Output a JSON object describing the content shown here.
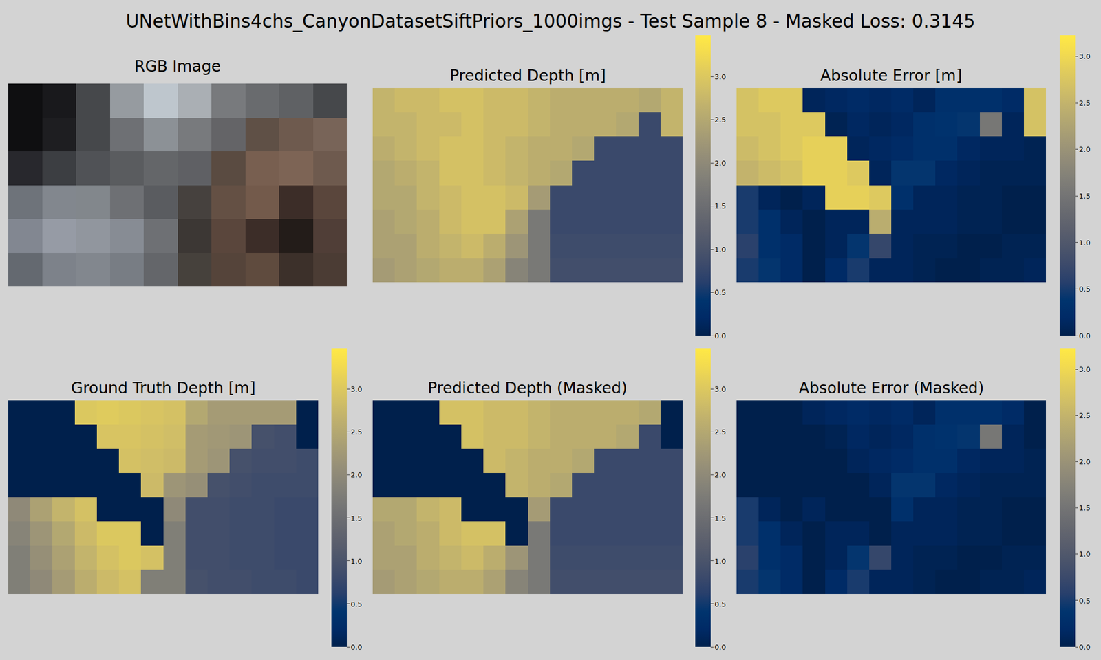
{
  "title": "UNetWithBins4chs_CanyonDatasetSiftPriors_1000imgs - Test Sample 8 - Masked Loss: 0.3145",
  "chart_data": [
    {
      "type": "image",
      "title": "RGB Image",
      "tick_labels": false,
      "pixels": [
        [
          [
            15,
            15,
            17
          ],
          [
            25,
            25,
            28
          ],
          [
            70,
            72,
            75
          ],
          [
            150,
            155,
            160
          ],
          [
            190,
            198,
            205
          ],
          [
            170,
            175,
            180
          ],
          [
            120,
            122,
            125
          ],
          [
            105,
            107,
            110
          ],
          [
            95,
            97,
            100
          ],
          [
            70,
            72,
            75
          ]
        ],
        [
          [
            15,
            15,
            17
          ],
          [
            30,
            30,
            33
          ],
          [
            70,
            72,
            75
          ],
          [
            110,
            112,
            116
          ],
          [
            140,
            145,
            150
          ],
          [
            120,
            122,
            125
          ],
          [
            100,
            100,
            103
          ],
          [
            95,
            80,
            70
          ],
          [
            110,
            90,
            78
          ],
          [
            120,
            100,
            88
          ]
        ],
        [
          [
            40,
            40,
            45
          ],
          [
            60,
            62,
            66
          ],
          [
            80,
            82,
            86
          ],
          [
            90,
            92,
            95
          ],
          [
            100,
            102,
            105
          ],
          [
            95,
            96,
            100
          ],
          [
            90,
            75,
            65
          ],
          [
            120,
            95,
            80
          ],
          [
            125,
            100,
            85
          ],
          [
            110,
            90,
            78
          ]
        ],
        [
          [
            110,
            115,
            122
          ],
          [
            130,
            135,
            142
          ],
          [
            130,
            135,
            140
          ],
          [
            110,
            112,
            116
          ],
          [
            90,
            92,
            96
          ],
          [
            70,
            65,
            62
          ],
          [
            100,
            80,
            68
          ],
          [
            115,
            90,
            75
          ],
          [
            60,
            45,
            40
          ],
          [
            90,
            70,
            60
          ]
        ],
        [
          [
            130,
            135,
            145
          ],
          [
            150,
            155,
            165
          ],
          [
            145,
            150,
            158
          ],
          [
            135,
            140,
            148
          ],
          [
            110,
            112,
            116
          ],
          [
            60,
            55,
            52
          ],
          [
            90,
            70,
            60
          ],
          [
            60,
            45,
            40
          ],
          [
            35,
            28,
            25
          ],
          [
            80,
            62,
            55
          ]
        ],
        [
          [
            100,
            105,
            112
          ],
          [
            125,
            130,
            138
          ],
          [
            130,
            135,
            142
          ],
          [
            120,
            125,
            132
          ],
          [
            100,
            102,
            106
          ],
          [
            70,
            65,
            60
          ],
          [
            85,
            68,
            58
          ],
          [
            95,
            75,
            62
          ],
          [
            60,
            48,
            42
          ],
          [
            75,
            60,
            52
          ]
        ]
      ]
    },
    {
      "type": "heatmap",
      "title": "Predicted Depth [m]",
      "tick_labels": false,
      "zlim": [
        0,
        3.48
      ],
      "zticks": [
        {
          "value": 0,
          "label": "0.0"
        },
        0.5,
        {
          "value": 1,
          "label": "1.0"
        },
        1.5,
        {
          "value": 2,
          "label": "2.0"
        },
        2.5,
        {
          "value": 3,
          "label": "3.0"
        }
      ],
      "z": [
        [
          2.7,
          2.8,
          2.8,
          2.9,
          2.9,
          2.8,
          2.8,
          2.7,
          2.6,
          2.6,
          2.6,
          2.6,
          2.5,
          2.7
        ],
        [
          2.7,
          2.7,
          2.8,
          2.8,
          2.9,
          2.8,
          2.8,
          2.7,
          2.6,
          2.6,
          2.6,
          2.5,
          0.8,
          2.7
        ],
        [
          2.6,
          2.7,
          2.8,
          2.9,
          2.9,
          2.8,
          2.7,
          2.6,
          2.6,
          2.5,
          0.8,
          0.8,
          0.8,
          0.8
        ],
        [
          2.5,
          2.6,
          2.7,
          2.9,
          2.9,
          2.8,
          2.7,
          2.6,
          2.5,
          0.8,
          0.8,
          0.8,
          0.8,
          0.8
        ],
        [
          2.5,
          2.5,
          2.7,
          2.8,
          2.9,
          2.9,
          2.8,
          2.3,
          0.8,
          0.8,
          0.8,
          0.8,
          0.8,
          0.8
        ],
        [
          2.4,
          2.5,
          2.6,
          2.8,
          2.9,
          2.9,
          2.4,
          1.7,
          0.8,
          0.8,
          0.8,
          0.8,
          0.8,
          0.8
        ],
        [
          2.4,
          2.4,
          2.6,
          2.7,
          2.8,
          2.6,
          2.2,
          1.7,
          0.85,
          0.85,
          0.85,
          0.85,
          0.85,
          0.85
        ],
        [
          2.3,
          2.4,
          2.5,
          2.6,
          2.6,
          2.4,
          1.9,
          1.7,
          0.9,
          0.9,
          0.9,
          0.9,
          0.9,
          0.9
        ]
      ]
    },
    {
      "type": "heatmap",
      "title": "Absolute Error [m]",
      "tick_labels": false,
      "zlim": [
        0,
        3.23
      ],
      "zticks": [
        {
          "value": 0,
          "label": "0.0"
        },
        0.5,
        {
          "value": 1,
          "label": "1.0"
        },
        1.5,
        {
          "value": 2,
          "label": "2.0"
        },
        2.5,
        {
          "value": 3,
          "label": "3.0"
        }
      ],
      "z": [
        [
          2.7,
          2.8,
          2.8,
          0.1,
          0.15,
          0.2,
          0.15,
          0.2,
          0.1,
          0.3,
          0.3,
          0.3,
          0.2,
          2.7
        ],
        [
          2.7,
          2.7,
          2.8,
          2.8,
          0.05,
          0.15,
          0.1,
          0.15,
          0.3,
          0.35,
          0.4,
          1.55,
          0.1,
          2.7
        ],
        [
          2.6,
          2.7,
          2.8,
          2.9,
          2.9,
          0.1,
          0.15,
          0.2,
          0.3,
          0.3,
          0.15,
          0.1,
          0.1,
          0.05
        ],
        [
          2.5,
          2.6,
          2.7,
          2.9,
          2.9,
          2.8,
          0.1,
          0.4,
          0.4,
          0.15,
          0.1,
          0.05,
          0.05,
          0.05
        ],
        [
          0.5,
          0.1,
          0,
          0.1,
          2.9,
          2.9,
          2.8,
          0.3,
          0.1,
          0.1,
          0.05,
          0.05,
          0,
          0
        ],
        [
          0.5,
          0.3,
          0.1,
          0,
          0.1,
          0.1,
          2.4,
          0.1,
          0.1,
          0.1,
          0.05,
          0.05,
          0,
          0
        ],
        [
          0.6,
          0.3,
          0.2,
          0,
          0.1,
          0.4,
          0.7,
          0.1,
          0.05,
          0.05,
          0,
          0,
          0.05,
          0.05
        ],
        [
          0.5,
          0.4,
          0.2,
          0,
          0.2,
          0.5,
          0.1,
          0.1,
          0.05,
          0,
          0,
          0.05,
          0.05,
          0.1
        ]
      ]
    },
    {
      "type": "heatmap",
      "title": "Ground Truth Depth [m]",
      "tick_labels": false,
      "zlim": [
        0,
        3.48
      ],
      "zticks": [
        {
          "value": 0,
          "label": "0.0"
        },
        0.5,
        {
          "value": 1,
          "label": "1.0"
        },
        1.5,
        {
          "value": 2,
          "label": "2.0"
        },
        2.5,
        {
          "value": 3,
          "label": "3.0"
        }
      ],
      "z": [
        [
          0,
          0,
          0,
          3.0,
          3.05,
          3.0,
          2.95,
          2.9,
          2.5,
          2.3,
          2.3,
          2.3,
          2.3,
          0
        ],
        [
          0,
          0,
          0,
          0,
          2.95,
          2.95,
          2.9,
          2.85,
          2.3,
          2.25,
          2.2,
          0.95,
          0.9,
          0
        ],
        [
          0,
          0,
          0,
          0,
          0,
          2.9,
          2.85,
          2.8,
          2.3,
          2.2,
          0.95,
          0.9,
          0.9,
          0.85
        ],
        [
          0,
          0,
          0,
          0,
          0,
          0,
          2.8,
          2.2,
          2.1,
          0.95,
          0.9,
          0.85,
          0.85,
          0.85
        ],
        [
          2.0,
          2.4,
          2.7,
          2.9,
          0,
          0,
          0,
          2.0,
          0.9,
          0.9,
          0.85,
          0.85,
          0.8,
          0.8
        ],
        [
          1.9,
          2.2,
          2.5,
          2.8,
          3.0,
          3.0,
          0,
          1.8,
          0.9,
          0.9,
          0.85,
          0.85,
          0.8,
          0.8
        ],
        [
          1.8,
          2.1,
          2.4,
          2.7,
          2.9,
          3.0,
          2.9,
          1.8,
          0.9,
          0.9,
          0.85,
          0.85,
          0.8,
          0.8
        ],
        [
          1.8,
          2.0,
          2.3,
          2.6,
          2.8,
          2.9,
          1.8,
          1.8,
          0.95,
          0.9,
          0.9,
          0.85,
          0.85,
          0.8
        ]
      ]
    },
    {
      "type": "heatmap",
      "title": "Predicted Depth (Masked)",
      "tick_labels": false,
      "zlim": [
        0,
        3.48
      ],
      "zticks": [
        {
          "value": 0,
          "label": "0.0"
        },
        0.5,
        {
          "value": 1,
          "label": "1.0"
        },
        1.5,
        {
          "value": 2,
          "label": "2.0"
        },
        2.5,
        {
          "value": 3,
          "label": "3.0"
        }
      ],
      "z": [
        [
          0,
          0,
          0,
          2.9,
          2.9,
          2.8,
          2.8,
          2.7,
          2.6,
          2.6,
          2.6,
          2.6,
          2.5,
          0
        ],
        [
          0,
          0,
          0,
          0,
          2.9,
          2.8,
          2.8,
          2.7,
          2.6,
          2.6,
          2.6,
          2.5,
          0.8,
          0
        ],
        [
          0,
          0,
          0,
          0,
          0,
          2.8,
          2.7,
          2.6,
          2.6,
          2.5,
          0.8,
          0.8,
          0.8,
          0.8
        ],
        [
          0,
          0,
          0,
          0,
          0,
          0,
          2.7,
          2.6,
          2.5,
          0.8,
          0.8,
          0.8,
          0.8,
          0.8
        ],
        [
          2.5,
          2.5,
          2.7,
          2.8,
          0,
          0,
          0,
          2.3,
          0.8,
          0.8,
          0.8,
          0.8,
          0.8,
          0.8
        ],
        [
          2.4,
          2.5,
          2.6,
          2.8,
          2.9,
          2.9,
          0,
          1.7,
          0.8,
          0.8,
          0.8,
          0.8,
          0.8,
          0.8
        ],
        [
          2.4,
          2.4,
          2.6,
          2.7,
          2.8,
          2.6,
          2.2,
          1.7,
          0.85,
          0.85,
          0.85,
          0.85,
          0.85,
          0.85
        ],
        [
          2.3,
          2.4,
          2.5,
          2.6,
          2.6,
          2.4,
          1.9,
          1.7,
          0.9,
          0.9,
          0.9,
          0.9,
          0.9,
          0.9
        ]
      ]
    },
    {
      "type": "heatmap",
      "title": "Absolute Error (Masked)",
      "tick_labels": false,
      "zlim": [
        0,
        3.23
      ],
      "zticks": [
        {
          "value": 0,
          "label": "0.0"
        },
        0.5,
        {
          "value": 1,
          "label": "1.0"
        },
        1.5,
        {
          "value": 2,
          "label": "2.0"
        },
        2.5,
        {
          "value": 3,
          "label": "3.0"
        }
      ],
      "z": [
        [
          0,
          0,
          0,
          0.1,
          0.15,
          0.2,
          0.15,
          0.2,
          0.1,
          0.3,
          0.3,
          0.3,
          0.2,
          0
        ],
        [
          0,
          0,
          0,
          0,
          0.05,
          0.15,
          0.1,
          0.15,
          0.3,
          0.35,
          0.4,
          1.55,
          0.1,
          0
        ],
        [
          0,
          0,
          0,
          0,
          0,
          0.1,
          0.15,
          0.2,
          0.3,
          0.3,
          0.15,
          0.1,
          0.1,
          0.05
        ],
        [
          0,
          0,
          0,
          0,
          0,
          0,
          0.1,
          0.4,
          0.4,
          0.15,
          0.1,
          0.05,
          0.05,
          0.05
        ],
        [
          0.5,
          0.1,
          0,
          0.1,
          0,
          0,
          0,
          0.3,
          0.1,
          0.1,
          0.05,
          0.05,
          0,
          0
        ],
        [
          0.5,
          0.3,
          0.1,
          0,
          0.1,
          0.1,
          0,
          0.1,
          0.1,
          0.1,
          0.05,
          0.05,
          0,
          0
        ],
        [
          0.6,
          0.3,
          0.2,
          0,
          0.1,
          0.4,
          0.7,
          0.1,
          0.05,
          0.05,
          0,
          0,
          0.05,
          0.05
        ],
        [
          0.5,
          0.4,
          0.2,
          0,
          0.2,
          0.5,
          0.1,
          0.1,
          0.05,
          0,
          0,
          0.05,
          0.05,
          0.1
        ]
      ]
    }
  ]
}
